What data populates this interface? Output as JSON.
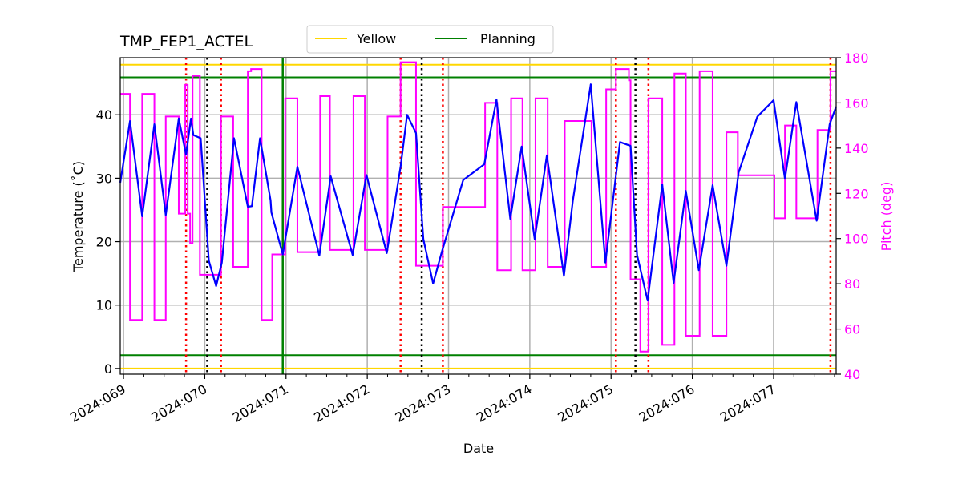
{
  "chart_data": {
    "type": "line",
    "title": "TMP_FEP1_ACTEL",
    "xlabel": "Date",
    "ylabel": "Temperature ($^\\circ$C)",
    "ylabel_display": "Temperature (˚C)",
    "y2label": "Pitch (deg)",
    "xlim": [
      68.96,
      77.77
    ],
    "ylim": [
      -0.9,
      49.0
    ],
    "y2lim": [
      40,
      180
    ],
    "grid": true,
    "legend_placement": "top-center",
    "x_ticks": [
      69,
      70,
      71,
      72,
      73,
      74,
      75,
      76,
      77
    ],
    "x_tick_labels": [
      "2024:069",
      "2024:070",
      "2024:071",
      "2024:072",
      "2024:073",
      "2024:074",
      "2024:075",
      "2024:076",
      "2024:077"
    ],
    "y_ticks": [
      0,
      10,
      20,
      30,
      40
    ],
    "y_tick_labels": [
      "0",
      "10",
      "20",
      "30",
      "40"
    ],
    "y2_ticks": [
      40,
      60,
      80,
      100,
      120,
      140,
      160,
      180
    ],
    "y2_tick_labels": [
      "40",
      "60",
      "80",
      "100",
      "120",
      "140",
      "160",
      "180"
    ],
    "colors": {
      "temperature": "#0000ff",
      "pitch": "#ff00ff",
      "yellow": "#ffd700",
      "planning": "#008000",
      "event_red": "#ff0000",
      "event_black": "#000000"
    },
    "legend": [
      {
        "label": "Yellow",
        "color": "#ffd700"
      },
      {
        "label": "Planning",
        "color": "#008000"
      }
    ],
    "hlines": [
      {
        "series": "Yellow",
        "y": 0.0
      },
      {
        "series": "Yellow",
        "y": 47.9
      },
      {
        "series": "Planning",
        "y": 2.1
      },
      {
        "series": "Planning",
        "y": 45.9
      }
    ],
    "vlines": {
      "red_dotted": [
        69.77,
        70.2,
        72.41,
        72.93,
        75.06,
        75.46,
        77.7
      ],
      "black_dotted": [
        70.03,
        72.67,
        75.3
      ],
      "green_solid": [
        70.96
      ]
    },
    "temperature": [
      [
        68.96,
        29.3
      ],
      [
        69.08,
        39.0
      ],
      [
        69.23,
        24.0
      ],
      [
        69.38,
        38.5
      ],
      [
        69.52,
        24.2
      ],
      [
        69.68,
        39.4
      ],
      [
        69.77,
        33.7
      ],
      [
        69.83,
        39.4
      ],
      [
        69.86,
        36.8
      ],
      [
        69.95,
        36.3
      ],
      [
        70.05,
        17.0
      ],
      [
        70.14,
        13.0
      ],
      [
        70.21,
        16.7
      ],
      [
        70.36,
        36.3
      ],
      [
        70.53,
        25.5
      ],
      [
        70.58,
        25.6
      ],
      [
        70.68,
        36.3
      ],
      [
        70.81,
        26.5
      ],
      [
        70.82,
        24.6
      ],
      [
        70.96,
        18.0
      ],
      [
        71.14,
        31.8
      ],
      [
        71.41,
        17.8
      ],
      [
        71.55,
        30.3
      ],
      [
        71.82,
        17.9
      ],
      [
        71.99,
        30.5
      ],
      [
        72.24,
        18.2
      ],
      [
        72.41,
        31.8
      ],
      [
        72.49,
        40.0
      ],
      [
        72.6,
        37.1
      ],
      [
        72.69,
        20.4
      ],
      [
        72.81,
        13.4
      ],
      [
        72.92,
        18.5
      ],
      [
        73.18,
        29.7
      ],
      [
        73.44,
        32.2
      ],
      [
        73.59,
        42.4
      ],
      [
        73.76,
        23.6
      ],
      [
        73.9,
        35.0
      ],
      [
        74.06,
        20.4
      ],
      [
        74.21,
        33.6
      ],
      [
        74.42,
        14.6
      ],
      [
        74.53,
        26.5
      ],
      [
        74.75,
        44.8
      ],
      [
        74.93,
        16.7
      ],
      [
        75.11,
        35.7
      ],
      [
        75.24,
        35.1
      ],
      [
        75.32,
        17.9
      ],
      [
        75.45,
        10.7
      ],
      [
        75.63,
        29.0
      ],
      [
        75.77,
        13.5
      ],
      [
        75.92,
        28.0
      ],
      [
        76.08,
        15.5
      ],
      [
        76.25,
        28.9
      ],
      [
        76.42,
        16.2
      ],
      [
        76.57,
        30.9
      ],
      [
        76.8,
        39.7
      ],
      [
        77.0,
        42.3
      ],
      [
        77.14,
        29.9
      ],
      [
        77.28,
        42.0
      ],
      [
        77.53,
        23.3
      ],
      [
        77.69,
        38.5
      ],
      [
        77.77,
        41.3
      ]
    ],
    "pitch_steps": [
      [
        68.96,
        164
      ],
      [
        69.08,
        64
      ],
      [
        69.23,
        164
      ],
      [
        69.38,
        64
      ],
      [
        69.52,
        154
      ],
      [
        69.68,
        111
      ],
      [
        69.76,
        168
      ],
      [
        69.79,
        111
      ],
      [
        69.82,
        98
      ],
      [
        69.85,
        172
      ],
      [
        69.94,
        84
      ],
      [
        70.2,
        154
      ],
      [
        70.35,
        87.5
      ],
      [
        70.53,
        174
      ],
      [
        70.57,
        175
      ],
      [
        70.7,
        64
      ],
      [
        70.83,
        93
      ],
      [
        70.99,
        162
      ],
      [
        71.14,
        94
      ],
      [
        71.42,
        163
      ],
      [
        71.54,
        95
      ],
      [
        71.83,
        163
      ],
      [
        71.97,
        95
      ],
      [
        72.25,
        154
      ],
      [
        72.41,
        178
      ],
      [
        72.6,
        88
      ],
      [
        72.93,
        114
      ],
      [
        73.45,
        160
      ],
      [
        73.6,
        86
      ],
      [
        73.77,
        162
      ],
      [
        73.91,
        86
      ],
      [
        74.07,
        162
      ],
      [
        74.22,
        87.5
      ],
      [
        74.43,
        152
      ],
      [
        74.76,
        87.5
      ],
      [
        74.94,
        166
      ],
      [
        75.06,
        175
      ],
      [
        75.22,
        170
      ],
      [
        75.24,
        82
      ],
      [
        75.36,
        50
      ],
      [
        75.46,
        162
      ],
      [
        75.63,
        53
      ],
      [
        75.78,
        173
      ],
      [
        75.92,
        57
      ],
      [
        76.09,
        174
      ],
      [
        76.25,
        57
      ],
      [
        76.42,
        147
      ],
      [
        76.56,
        128
      ],
      [
        77.01,
        109
      ],
      [
        77.14,
        150
      ],
      [
        77.28,
        109
      ],
      [
        77.54,
        148
      ],
      [
        77.7,
        174
      ],
      [
        77.77,
        174
      ]
    ]
  }
}
